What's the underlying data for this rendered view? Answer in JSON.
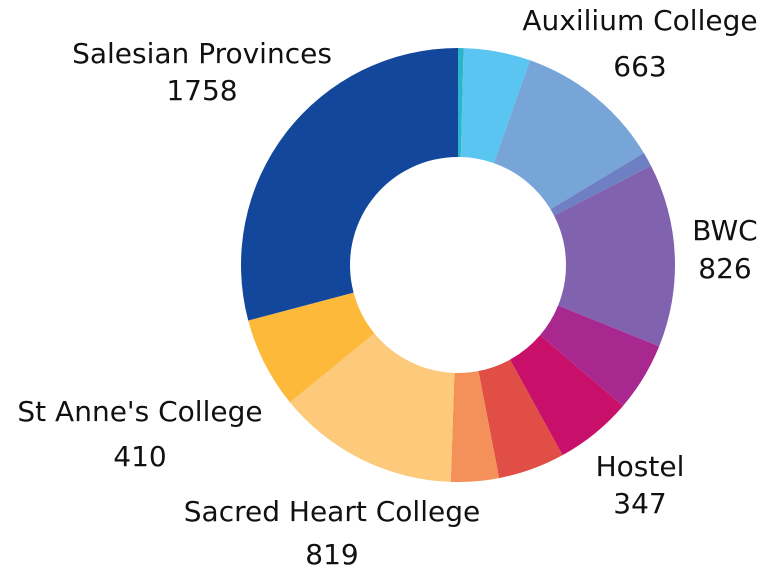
{
  "chart_data": {
    "type": "donut",
    "categories": [
      null,
      null,
      "Auxilium College",
      null,
      "BWC",
      null,
      "Hostel",
      null,
      null,
      "Sacred Heart College",
      "St Anne's College",
      "Salesian Provinces"
    ],
    "values": [
      25,
      300,
      663,
      65,
      826,
      310,
      347,
      300,
      215,
      819,
      410,
      1758
    ],
    "colors": [
      "#2bb5c9",
      "#59c5f0",
      "#77a5d8",
      "#6f7fc4",
      "#8062ae",
      "#a8288f",
      "#c8106a",
      "#e04e45",
      "#f4915a",
      "#fdc97a",
      "#fdb93a",
      "#13479b"
    ]
  }
}
